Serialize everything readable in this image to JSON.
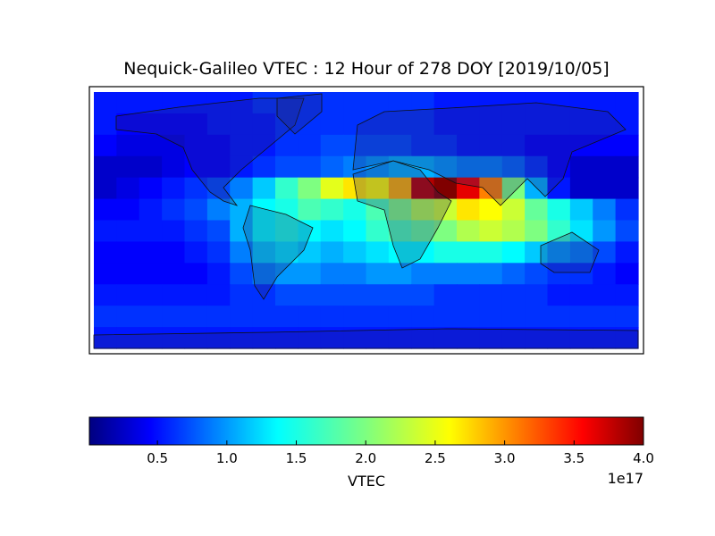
{
  "chart_data": {
    "type": "heatmap",
    "title": "Nequick-Galileo VTEC : 12 Hour of 278 DOY [2019/10/05]",
    "colormap": "jet",
    "xlim": [
      -180,
      180
    ],
    "ylim": [
      -90,
      90
    ],
    "values": [
      [
        0.6,
        0.6,
        0.6,
        0.6,
        0.6,
        0.6,
        0.6,
        0.7,
        0.7,
        0.7,
        0.7,
        0.7,
        0.7,
        0.7,
        0.7,
        0.6,
        0.6,
        0.6,
        0.6,
        0.6,
        0.6,
        0.6,
        0.6,
        0.6
      ],
      [
        0.6,
        0.5,
        0.5,
        0.5,
        0.5,
        0.6,
        0.6,
        0.6,
        0.7,
        0.7,
        0.7,
        0.7,
        0.7,
        0.7,
        0.7,
        0.6,
        0.6,
        0.6,
        0.6,
        0.6,
        0.6,
        0.6,
        0.6,
        0.6
      ],
      [
        0.5,
        0.4,
        0.4,
        0.4,
        0.5,
        0.5,
        0.6,
        0.6,
        0.7,
        0.7,
        0.8,
        0.8,
        0.8,
        0.8,
        0.7,
        0.7,
        0.6,
        0.6,
        0.6,
        0.5,
        0.5,
        0.5,
        0.5,
        0.5
      ],
      [
        0.3,
        0.3,
        0.3,
        0.4,
        0.5,
        0.5,
        0.6,
        0.7,
        0.8,
        0.8,
        0.9,
        1.0,
        1.1,
        1.2,
        1.2,
        1.1,
        1.0,
        1.0,
        0.9,
        0.7,
        0.5,
        0.3,
        0.3,
        0.3
      ],
      [
        0.3,
        0.4,
        0.5,
        0.6,
        0.7,
        0.8,
        1.0,
        1.3,
        1.7,
        2.0,
        2.4,
        2.6,
        2.5,
        2.8,
        3.8,
        4.0,
        3.6,
        3.0,
        2.0,
        1.2,
        0.6,
        0.3,
        0.3,
        0.3
      ],
      [
        0.5,
        0.5,
        0.6,
        0.7,
        0.8,
        1.0,
        1.2,
        1.5,
        1.6,
        1.8,
        1.7,
        1.6,
        1.8,
        2.0,
        2.2,
        2.3,
        2.6,
        2.5,
        2.3,
        1.9,
        1.6,
        1.3,
        1.0,
        0.7
      ],
      [
        0.6,
        0.6,
        0.6,
        0.6,
        0.7,
        0.8,
        1.2,
        1.5,
        1.6,
        1.5,
        1.4,
        1.5,
        1.7,
        1.8,
        1.9,
        2.0,
        2.2,
        2.3,
        2.2,
        2.0,
        1.7,
        1.4,
        1.1,
        0.8
      ],
      [
        0.5,
        0.5,
        0.5,
        0.5,
        0.6,
        0.7,
        1.0,
        1.3,
        1.4,
        1.3,
        1.2,
        1.3,
        1.4,
        1.5,
        1.5,
        1.6,
        1.6,
        1.6,
        1.5,
        1.3,
        1.1,
        1.0,
        0.8,
        0.6
      ],
      [
        0.5,
        0.5,
        0.5,
        0.5,
        0.5,
        0.6,
        0.8,
        1.0,
        1.1,
        1.1,
        1.0,
        1.0,
        1.1,
        1.1,
        1.0,
        1.0,
        1.0,
        1.0,
        0.9,
        0.8,
        0.7,
        0.7,
        0.6,
        0.5
      ],
      [
        0.6,
        0.6,
        0.6,
        0.6,
        0.6,
        0.6,
        0.7,
        0.7,
        0.8,
        0.8,
        0.8,
        0.8,
        0.8,
        0.8,
        0.8,
        0.7,
        0.7,
        0.7,
        0.7,
        0.7,
        0.6,
        0.6,
        0.6,
        0.6
      ],
      [
        0.7,
        0.7,
        0.7,
        0.7,
        0.7,
        0.7,
        0.7,
        0.7,
        0.7,
        0.7,
        0.7,
        0.7,
        0.7,
        0.7,
        0.7,
        0.7,
        0.7,
        0.7,
        0.7,
        0.7,
        0.7,
        0.7,
        0.7,
        0.7
      ],
      [
        0.6,
        0.6,
        0.6,
        0.6,
        0.6,
        0.6,
        0.6,
        0.6,
        0.6,
        0.6,
        0.6,
        0.6,
        0.6,
        0.6,
        0.6,
        0.6,
        0.6,
        0.6,
        0.6,
        0.6,
        0.6,
        0.6,
        0.6,
        0.6
      ]
    ],
    "colorbar": {
      "label": "VTEC",
      "offset_label": "1e17",
      "lim": [
        0.01,
        4.0
      ],
      "ticks": [
        0.5,
        {
          "value": 1,
          "label": "1.0"
        },
        1.5,
        {
          "value": 2,
          "label": "2.0"
        },
        2.5,
        {
          "value": 3,
          "label": "3.0"
        },
        3.5,
        {
          "value": 4,
          "label": "4.0"
        }
      ]
    }
  }
}
